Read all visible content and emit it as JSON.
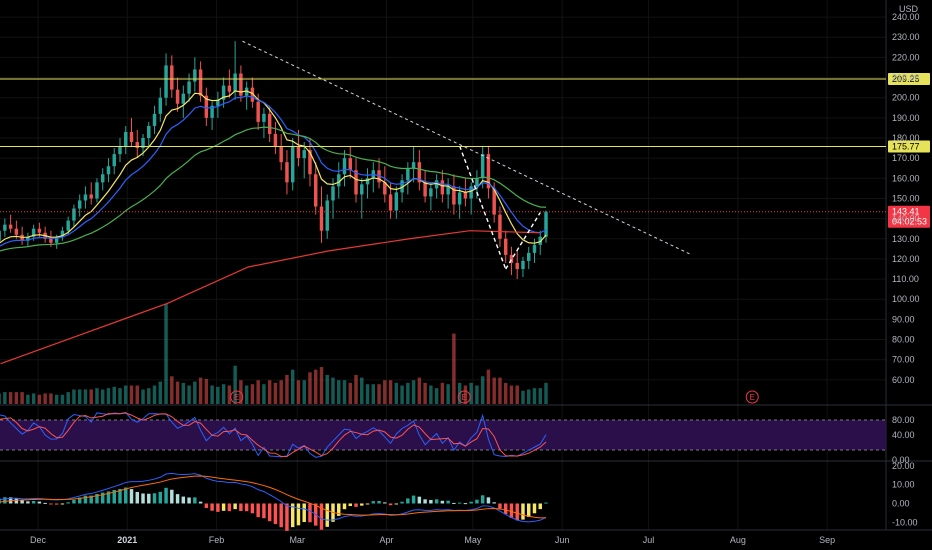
{
  "currency_label": "USD",
  "price_axis_ticks": [
    "240.00",
    "230.00",
    "220.00",
    "210.00",
    "200.00",
    "190.00",
    "180.00",
    "170.00",
    "160.00",
    "150.00",
    "140.00",
    "130.00",
    "120.00",
    "110.00",
    "100.00",
    "90.00",
    "80.00",
    "70.00",
    "60.00"
  ],
  "stoch_axis_ticks": [
    "80.00",
    "40.00",
    "0.00"
  ],
  "macd_axis_ticks": [
    "20.00",
    "10.00",
    "0.00",
    "-10.00"
  ],
  "date_axis": [
    "Dec",
    "2021",
    "Feb",
    "Mar",
    "Apr",
    "May",
    "Jun",
    "Jul",
    "Aug",
    "Sep"
  ],
  "date_axis_bold": [
    "2021"
  ],
  "horizontal_levels": [
    {
      "value": 209.25,
      "label": "209.25",
      "color": "#e6e25a"
    },
    {
      "value": 175.77,
      "label": "175.77",
      "color": "#e6e25a"
    }
  ],
  "last_price": {
    "value": 143.41,
    "label": "143.41",
    "countdown": "04:02:53",
    "color": "#f23645"
  },
  "earnings_marker": "E",
  "colors": {
    "up": "#26a69a",
    "down": "#ef5350",
    "ema_fast": "#f5e663",
    "ema_mid": "#2962ff",
    "ema_slow": "#4caf50",
    "ema_200": "#e53935",
    "stoch_k": "#2962ff",
    "stoch_d": "#ff5252",
    "stoch_band": "#2a0f4a",
    "macd_line": "#2962ff",
    "signal_line": "#ff6d00"
  },
  "chart_data": {
    "type": "candlestick",
    "ylim": [
      50,
      245
    ],
    "xlabel": "",
    "ylabel": "",
    "grid": true,
    "legend": "none",
    "ohlc_start": "2020-11-18",
    "ohlc": [
      [
        118,
        124,
        115,
        122
      ],
      [
        122,
        126,
        119,
        120
      ],
      [
        120,
        127,
        118,
        126
      ],
      [
        126,
        130,
        123,
        128
      ],
      [
        128,
        133,
        125,
        130
      ],
      [
        130,
        135,
        127,
        129
      ],
      [
        129,
        136,
        128,
        134
      ],
      [
        134,
        140,
        131,
        137
      ],
      [
        137,
        142,
        133,
        135
      ],
      [
        135,
        139,
        130,
        132
      ],
      [
        132,
        136,
        127,
        129
      ],
      [
        129,
        133,
        126,
        131
      ],
      [
        131,
        137,
        129,
        135
      ],
      [
        135,
        138,
        131,
        133
      ],
      [
        133,
        136,
        128,
        130
      ],
      [
        130,
        134,
        126,
        128
      ],
      [
        128,
        132,
        125,
        131
      ],
      [
        131,
        136,
        129,
        134
      ],
      [
        134,
        141,
        132,
        139
      ],
      [
        139,
        147,
        136,
        145
      ],
      [
        145,
        152,
        141,
        149
      ],
      [
        149,
        156,
        145,
        152
      ],
      [
        152,
        158,
        147,
        150
      ],
      [
        150,
        160,
        148,
        158
      ],
      [
        158,
        165,
        154,
        162
      ],
      [
        162,
        170,
        158,
        166
      ],
      [
        166,
        175,
        162,
        172
      ],
      [
        172,
        180,
        168,
        176
      ],
      [
        176,
        186,
        172,
        183
      ],
      [
        183,
        190,
        176,
        178
      ],
      [
        178,
        184,
        170,
        175
      ],
      [
        175,
        182,
        171,
        180
      ],
      [
        180,
        188,
        176,
        186
      ],
      [
        186,
        196,
        182,
        192
      ],
      [
        192,
        205,
        188,
        200
      ],
      [
        200,
        222,
        196,
        216
      ],
      [
        216,
        221,
        200,
        204
      ],
      [
        204,
        210,
        193,
        197
      ],
      [
        197,
        206,
        190,
        202
      ],
      [
        202,
        212,
        198,
        208
      ],
      [
        208,
        220,
        203,
        214
      ],
      [
        214,
        218,
        198,
        201
      ],
      [
        201,
        205,
        186,
        190
      ],
      [
        190,
        198,
        184,
        196
      ],
      [
        196,
        203,
        190,
        199
      ],
      [
        199,
        210,
        195,
        206
      ],
      [
        206,
        214,
        200,
        203
      ],
      [
        203,
        228,
        199,
        212
      ],
      [
        212,
        216,
        198,
        201
      ],
      [
        201,
        208,
        194,
        205
      ],
      [
        205,
        210,
        195,
        198
      ],
      [
        198,
        202,
        184,
        188
      ],
      [
        188,
        195,
        180,
        192
      ],
      [
        192,
        196,
        178,
        182
      ],
      [
        182,
        188,
        172,
        176
      ],
      [
        176,
        182,
        164,
        168
      ],
      [
        168,
        174,
        152,
        158
      ],
      [
        158,
        180,
        154,
        176
      ],
      [
        176,
        184,
        166,
        170
      ],
      [
        170,
        178,
        160,
        174
      ],
      [
        174,
        180,
        156,
        162
      ],
      [
        162,
        168,
        142,
        146
      ],
      [
        146,
        156,
        128,
        134
      ],
      [
        134,
        152,
        130,
        149
      ],
      [
        149,
        160,
        140,
        156
      ],
      [
        156,
        168,
        150,
        162
      ],
      [
        162,
        174,
        156,
        170
      ],
      [
        170,
        176,
        160,
        164
      ],
      [
        164,
        170,
        148,
        152
      ],
      [
        152,
        160,
        140,
        157
      ],
      [
        157,
        165,
        150,
        160
      ],
      [
        160,
        168,
        153,
        164
      ],
      [
        164,
        170,
        155,
        158
      ],
      [
        158,
        166,
        148,
        152
      ],
      [
        152,
        158,
        140,
        144
      ],
      [
        144,
        156,
        140,
        153
      ],
      [
        153,
        162,
        148,
        159
      ],
      [
        159,
        168,
        152,
        165
      ],
      [
        165,
        176,
        158,
        168
      ],
      [
        168,
        174,
        154,
        158
      ],
      [
        158,
        164,
        148,
        151
      ],
      [
        151,
        158,
        144,
        155
      ],
      [
        155,
        162,
        150,
        159
      ],
      [
        159,
        164,
        148,
        152
      ],
      [
        152,
        160,
        145,
        156
      ],
      [
        156,
        162,
        142,
        147
      ],
      [
        147,
        156,
        140,
        153
      ],
      [
        153,
        160,
        146,
        150
      ],
      [
        150,
        158,
        142,
        156
      ],
      [
        156,
        164,
        150,
        160
      ],
      [
        160,
        176,
        155,
        172
      ],
      [
        172,
        176,
        150,
        155
      ],
      [
        155,
        158,
        138,
        142
      ],
      [
        142,
        146,
        126,
        130
      ],
      [
        130,
        134,
        118,
        122
      ],
      [
        122,
        126,
        112,
        118
      ],
      [
        118,
        124,
        110,
        115
      ],
      [
        115,
        121,
        111,
        119
      ],
      [
        119,
        126,
        115,
        123
      ],
      [
        123,
        130,
        118,
        127
      ],
      [
        127,
        134,
        122,
        131
      ],
      [
        131,
        144,
        128,
        143.41
      ]
    ],
    "series": [
      {
        "name": "",
        "type": "ema",
        "color_key": "ema_fast",
        "period": 8
      },
      {
        "name": "",
        "type": "ema",
        "color_key": "ema_mid",
        "period": 13
      },
      {
        "name": "",
        "type": "ema",
        "color_key": "ema_slow",
        "period": 34
      },
      {
        "name": "",
        "type": "ema",
        "color_key": "ema_200",
        "values": [
          {
            "date": "2020-11-18",
            "v": 68
          },
          {
            "date": "2020-12-15",
            "v": 82
          },
          {
            "date": "2021-01-15",
            "v": 98
          },
          {
            "date": "2021-02-12",
            "v": 116
          },
          {
            "date": "2021-03-12",
            "v": 124
          },
          {
            "date": "2021-04-09",
            "v": 130
          },
          {
            "date": "2021-04-30",
            "v": 134
          },
          {
            "date": "2021-05-24",
            "v": 133
          }
        ]
      }
    ],
    "trendline": {
      "from": {
        "date": "2021-02-10",
        "price": 228
      },
      "to": {
        "date": "2021-07-16",
        "price": 122
      }
    },
    "earnings_dates": [
      "2021-02-08",
      "2021-04-28",
      "2021-08-06"
    ],
    "stochastic": {
      "range": [
        0,
        100
      ],
      "band": [
        20,
        80
      ]
    },
    "macd": {
      "range": [
        -13,
        22
      ]
    }
  }
}
